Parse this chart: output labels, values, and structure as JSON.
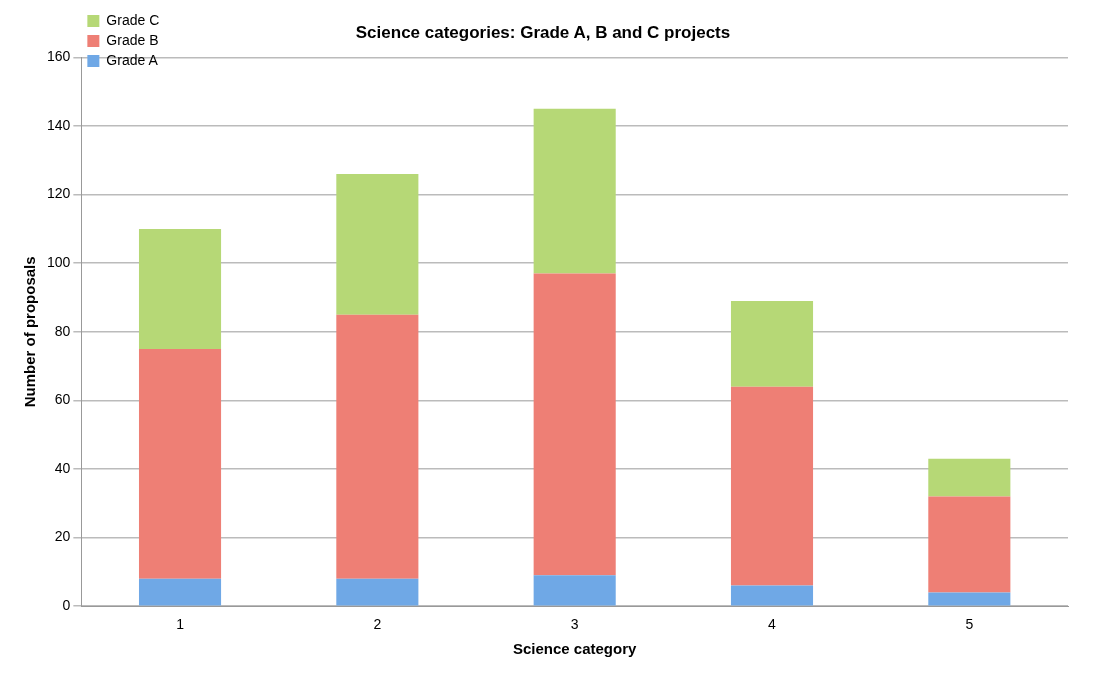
{
  "chart_data": {
    "type": "bar",
    "title": "Science categories: Grade A, B and C projects",
    "xlabel": "Science category",
    "ylabel": "Number of proposals",
    "categories": [
      "1",
      "2",
      "3",
      "4",
      "5"
    ],
    "stacked": true,
    "series": [
      {
        "name": "Grade A",
        "color": "#6fa8e6",
        "values": [
          8,
          8,
          9,
          6,
          4
        ]
      },
      {
        "name": "Grade B",
        "color": "#ee7f75",
        "values": [
          67,
          77,
          88,
          58,
          28
        ]
      },
      {
        "name": "Grade C",
        "color": "#b6d876",
        "values": [
          35,
          41,
          48,
          25,
          11
        ]
      }
    ],
    "ylim": [
      0,
      160
    ],
    "yticks": [
      0,
      20,
      40,
      60,
      80,
      100,
      120,
      140,
      160
    ],
    "grid": "y",
    "legend": "top left"
  }
}
